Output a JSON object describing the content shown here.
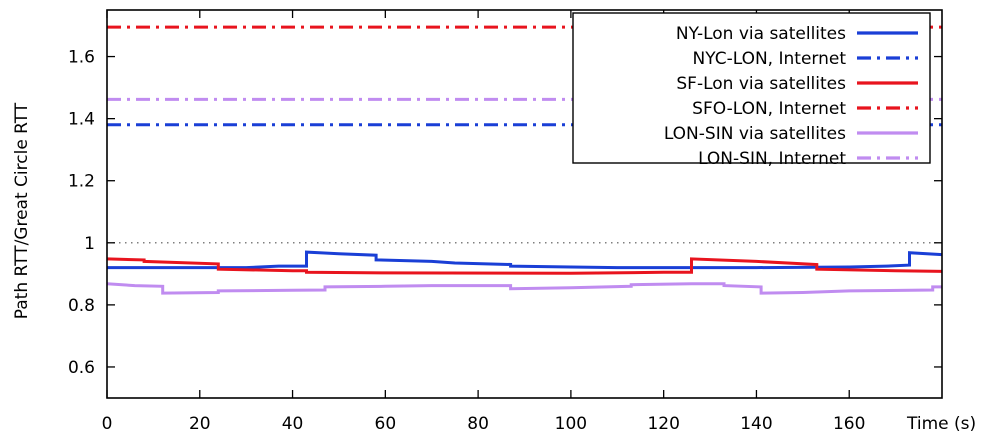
{
  "chart_data": {
    "type": "line",
    "title": "",
    "xlabel": "Time (s)",
    "ylabel": "Path RTT/Great Circle RTT",
    "xlim": [
      0,
      180
    ],
    "ylim": [
      0.5,
      1.75
    ],
    "xticks": [
      0,
      20,
      40,
      60,
      80,
      100,
      120,
      140,
      160
    ],
    "yticks": [
      0.6,
      0.8,
      1.0,
      1.2,
      1.4,
      1.6
    ],
    "xtick_labels": [
      "0",
      "20",
      "40",
      "60",
      "80",
      "100",
      "120",
      "140",
      "160"
    ],
    "ytick_labels": [
      "0.6",
      "0.8",
      "1",
      "1.2",
      "1.4",
      "1.6"
    ],
    "reference_line": {
      "y": 1.0,
      "style": "dotted"
    },
    "legend_position": "top-right",
    "series": [
      {
        "name": "NY-Lon via satellites",
        "color": "#1a3fd6",
        "style": "solid",
        "points": [
          [
            0,
            0.92
          ],
          [
            10,
            0.92
          ],
          [
            20,
            0.92
          ],
          [
            30,
            0.92
          ],
          [
            37,
            0.925
          ],
          [
            43,
            0.925
          ],
          [
            43,
            0.97
          ],
          [
            50,
            0.965
          ],
          [
            58,
            0.96
          ],
          [
            58,
            0.945
          ],
          [
            70,
            0.94
          ],
          [
            75,
            0.935
          ],
          [
            87,
            0.93
          ],
          [
            87,
            0.925
          ],
          [
            100,
            0.922
          ],
          [
            110,
            0.92
          ],
          [
            126,
            0.92
          ],
          [
            140,
            0.92
          ],
          [
            160,
            0.922
          ],
          [
            168,
            0.925
          ],
          [
            173,
            0.928
          ],
          [
            173,
            0.968
          ],
          [
            180,
            0.962
          ]
        ]
      },
      {
        "name": "NYC-LON, Internet",
        "color": "#1a3fd6",
        "style": "dashdot",
        "points": [
          [
            0,
            1.38
          ],
          [
            180,
            1.38
          ]
        ]
      },
      {
        "name": "SF-Lon via satellites",
        "color": "#e8141e",
        "style": "solid",
        "points": [
          [
            0,
            0.948
          ],
          [
            8,
            0.945
          ],
          [
            8,
            0.94
          ],
          [
            24,
            0.932
          ],
          [
            24,
            0.915
          ],
          [
            40,
            0.91
          ],
          [
            43,
            0.91
          ],
          [
            43,
            0.905
          ],
          [
            60,
            0.903
          ],
          [
            100,
            0.902
          ],
          [
            120,
            0.905
          ],
          [
            126,
            0.905
          ],
          [
            126,
            0.948
          ],
          [
            140,
            0.94
          ],
          [
            153,
            0.93
          ],
          [
            153,
            0.915
          ],
          [
            170,
            0.91
          ],
          [
            180,
            0.908
          ]
        ]
      },
      {
        "name": "SFO-LON, Internet",
        "color": "#e8141e",
        "style": "dashdot",
        "points": [
          [
            0,
            1.695
          ],
          [
            180,
            1.695
          ]
        ]
      },
      {
        "name": "LON-SIN via satellites",
        "color": "#c08cf0",
        "style": "solid",
        "points": [
          [
            0,
            0.868
          ],
          [
            6,
            0.862
          ],
          [
            12,
            0.86
          ],
          [
            12,
            0.838
          ],
          [
            24,
            0.84
          ],
          [
            24,
            0.845
          ],
          [
            40,
            0.847
          ],
          [
            47,
            0.848
          ],
          [
            47,
            0.858
          ],
          [
            60,
            0.86
          ],
          [
            70,
            0.862
          ],
          [
            87,
            0.862
          ],
          [
            87,
            0.852
          ],
          [
            100,
            0.855
          ],
          [
            113,
            0.86
          ],
          [
            113,
            0.865
          ],
          [
            126,
            0.868
          ],
          [
            133,
            0.868
          ],
          [
            133,
            0.862
          ],
          [
            141,
            0.858
          ],
          [
            141,
            0.838
          ],
          [
            150,
            0.84
          ],
          [
            160,
            0.845
          ],
          [
            178,
            0.848
          ],
          [
            178,
            0.858
          ],
          [
            180,
            0.858
          ]
        ]
      },
      {
        "name": "LON-SIN, Internet",
        "color": "#c08cf0",
        "style": "dashdot",
        "points": [
          [
            0,
            1.462
          ],
          [
            180,
            1.462
          ]
        ]
      }
    ]
  }
}
